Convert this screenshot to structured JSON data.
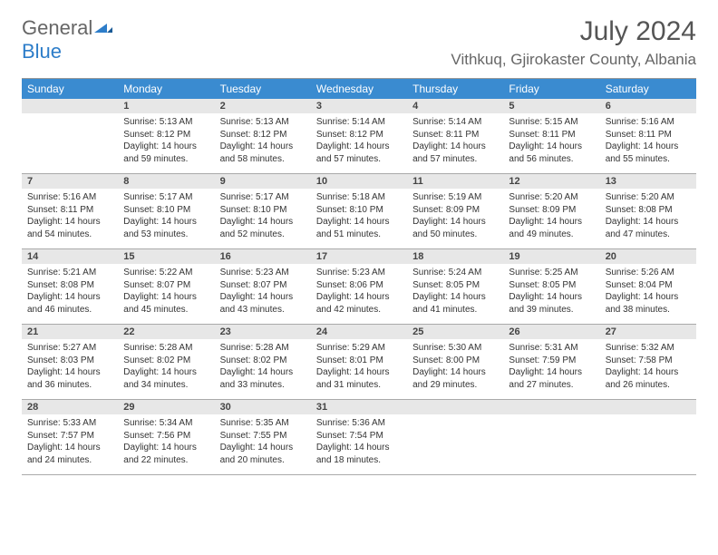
{
  "logo": {
    "line1": "General",
    "line2": "Blue"
  },
  "header": {
    "title": "July 2024",
    "location": "Vithkuq, Gjirokaster County, Albania"
  },
  "colors": {
    "header_bar": "#3a8bd0",
    "header_text": "#ffffff",
    "daynum_bg": "#e7e7e7",
    "body_text": "#333333",
    "logo_gray": "#666666",
    "logo_blue": "#2d7dc9"
  },
  "day_names": [
    "Sunday",
    "Monday",
    "Tuesday",
    "Wednesday",
    "Thursday",
    "Friday",
    "Saturday"
  ],
  "weeks": [
    [
      {
        "num": "",
        "sunrise": "",
        "sunset": "",
        "daylight1": "",
        "daylight2": ""
      },
      {
        "num": "1",
        "sunrise": "Sunrise: 5:13 AM",
        "sunset": "Sunset: 8:12 PM",
        "daylight1": "Daylight: 14 hours",
        "daylight2": "and 59 minutes."
      },
      {
        "num": "2",
        "sunrise": "Sunrise: 5:13 AM",
        "sunset": "Sunset: 8:12 PM",
        "daylight1": "Daylight: 14 hours",
        "daylight2": "and 58 minutes."
      },
      {
        "num": "3",
        "sunrise": "Sunrise: 5:14 AM",
        "sunset": "Sunset: 8:12 PM",
        "daylight1": "Daylight: 14 hours",
        "daylight2": "and 57 minutes."
      },
      {
        "num": "4",
        "sunrise": "Sunrise: 5:14 AM",
        "sunset": "Sunset: 8:11 PM",
        "daylight1": "Daylight: 14 hours",
        "daylight2": "and 57 minutes."
      },
      {
        "num": "5",
        "sunrise": "Sunrise: 5:15 AM",
        "sunset": "Sunset: 8:11 PM",
        "daylight1": "Daylight: 14 hours",
        "daylight2": "and 56 minutes."
      },
      {
        "num": "6",
        "sunrise": "Sunrise: 5:16 AM",
        "sunset": "Sunset: 8:11 PM",
        "daylight1": "Daylight: 14 hours",
        "daylight2": "and 55 minutes."
      }
    ],
    [
      {
        "num": "7",
        "sunrise": "Sunrise: 5:16 AM",
        "sunset": "Sunset: 8:11 PM",
        "daylight1": "Daylight: 14 hours",
        "daylight2": "and 54 minutes."
      },
      {
        "num": "8",
        "sunrise": "Sunrise: 5:17 AM",
        "sunset": "Sunset: 8:10 PM",
        "daylight1": "Daylight: 14 hours",
        "daylight2": "and 53 minutes."
      },
      {
        "num": "9",
        "sunrise": "Sunrise: 5:17 AM",
        "sunset": "Sunset: 8:10 PM",
        "daylight1": "Daylight: 14 hours",
        "daylight2": "and 52 minutes."
      },
      {
        "num": "10",
        "sunrise": "Sunrise: 5:18 AM",
        "sunset": "Sunset: 8:10 PM",
        "daylight1": "Daylight: 14 hours",
        "daylight2": "and 51 minutes."
      },
      {
        "num": "11",
        "sunrise": "Sunrise: 5:19 AM",
        "sunset": "Sunset: 8:09 PM",
        "daylight1": "Daylight: 14 hours",
        "daylight2": "and 50 minutes."
      },
      {
        "num": "12",
        "sunrise": "Sunrise: 5:20 AM",
        "sunset": "Sunset: 8:09 PM",
        "daylight1": "Daylight: 14 hours",
        "daylight2": "and 49 minutes."
      },
      {
        "num": "13",
        "sunrise": "Sunrise: 5:20 AM",
        "sunset": "Sunset: 8:08 PM",
        "daylight1": "Daylight: 14 hours",
        "daylight2": "and 47 minutes."
      }
    ],
    [
      {
        "num": "14",
        "sunrise": "Sunrise: 5:21 AM",
        "sunset": "Sunset: 8:08 PM",
        "daylight1": "Daylight: 14 hours",
        "daylight2": "and 46 minutes."
      },
      {
        "num": "15",
        "sunrise": "Sunrise: 5:22 AM",
        "sunset": "Sunset: 8:07 PM",
        "daylight1": "Daylight: 14 hours",
        "daylight2": "and 45 minutes."
      },
      {
        "num": "16",
        "sunrise": "Sunrise: 5:23 AM",
        "sunset": "Sunset: 8:07 PM",
        "daylight1": "Daylight: 14 hours",
        "daylight2": "and 43 minutes."
      },
      {
        "num": "17",
        "sunrise": "Sunrise: 5:23 AM",
        "sunset": "Sunset: 8:06 PM",
        "daylight1": "Daylight: 14 hours",
        "daylight2": "and 42 minutes."
      },
      {
        "num": "18",
        "sunrise": "Sunrise: 5:24 AM",
        "sunset": "Sunset: 8:05 PM",
        "daylight1": "Daylight: 14 hours",
        "daylight2": "and 41 minutes."
      },
      {
        "num": "19",
        "sunrise": "Sunrise: 5:25 AM",
        "sunset": "Sunset: 8:05 PM",
        "daylight1": "Daylight: 14 hours",
        "daylight2": "and 39 minutes."
      },
      {
        "num": "20",
        "sunrise": "Sunrise: 5:26 AM",
        "sunset": "Sunset: 8:04 PM",
        "daylight1": "Daylight: 14 hours",
        "daylight2": "and 38 minutes."
      }
    ],
    [
      {
        "num": "21",
        "sunrise": "Sunrise: 5:27 AM",
        "sunset": "Sunset: 8:03 PM",
        "daylight1": "Daylight: 14 hours",
        "daylight2": "and 36 minutes."
      },
      {
        "num": "22",
        "sunrise": "Sunrise: 5:28 AM",
        "sunset": "Sunset: 8:02 PM",
        "daylight1": "Daylight: 14 hours",
        "daylight2": "and 34 minutes."
      },
      {
        "num": "23",
        "sunrise": "Sunrise: 5:28 AM",
        "sunset": "Sunset: 8:02 PM",
        "daylight1": "Daylight: 14 hours",
        "daylight2": "and 33 minutes."
      },
      {
        "num": "24",
        "sunrise": "Sunrise: 5:29 AM",
        "sunset": "Sunset: 8:01 PM",
        "daylight1": "Daylight: 14 hours",
        "daylight2": "and 31 minutes."
      },
      {
        "num": "25",
        "sunrise": "Sunrise: 5:30 AM",
        "sunset": "Sunset: 8:00 PM",
        "daylight1": "Daylight: 14 hours",
        "daylight2": "and 29 minutes."
      },
      {
        "num": "26",
        "sunrise": "Sunrise: 5:31 AM",
        "sunset": "Sunset: 7:59 PM",
        "daylight1": "Daylight: 14 hours",
        "daylight2": "and 27 minutes."
      },
      {
        "num": "27",
        "sunrise": "Sunrise: 5:32 AM",
        "sunset": "Sunset: 7:58 PM",
        "daylight1": "Daylight: 14 hours",
        "daylight2": "and 26 minutes."
      }
    ],
    [
      {
        "num": "28",
        "sunrise": "Sunrise: 5:33 AM",
        "sunset": "Sunset: 7:57 PM",
        "daylight1": "Daylight: 14 hours",
        "daylight2": "and 24 minutes."
      },
      {
        "num": "29",
        "sunrise": "Sunrise: 5:34 AM",
        "sunset": "Sunset: 7:56 PM",
        "daylight1": "Daylight: 14 hours",
        "daylight2": "and 22 minutes."
      },
      {
        "num": "30",
        "sunrise": "Sunrise: 5:35 AM",
        "sunset": "Sunset: 7:55 PM",
        "daylight1": "Daylight: 14 hours",
        "daylight2": "and 20 minutes."
      },
      {
        "num": "31",
        "sunrise": "Sunrise: 5:36 AM",
        "sunset": "Sunset: 7:54 PM",
        "daylight1": "Daylight: 14 hours",
        "daylight2": "and 18 minutes."
      },
      {
        "num": "",
        "sunrise": "",
        "sunset": "",
        "daylight1": "",
        "daylight2": ""
      },
      {
        "num": "",
        "sunrise": "",
        "sunset": "",
        "daylight1": "",
        "daylight2": ""
      },
      {
        "num": "",
        "sunrise": "",
        "sunset": "",
        "daylight1": "",
        "daylight2": ""
      }
    ]
  ]
}
